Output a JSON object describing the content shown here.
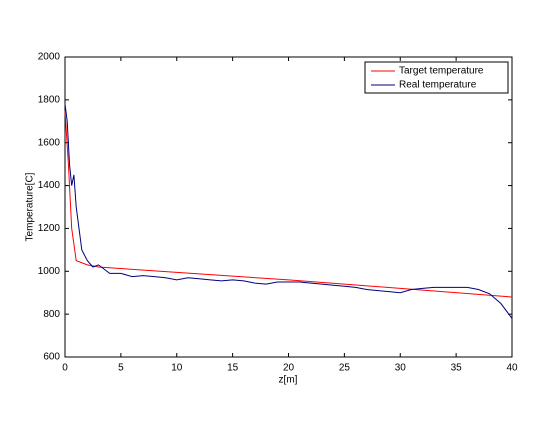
{
  "chart_data": {
    "type": "line",
    "xlabel": "z[m]",
    "ylabel": "Temperature[C]",
    "xlim": [
      0,
      40
    ],
    "xticks": [
      0,
      5,
      10,
      15,
      20,
      25,
      30,
      35,
      40
    ],
    "ylim": [
      600,
      2000
    ],
    "yticks": [
      600,
      800,
      1000,
      1200,
      1400,
      1600,
      1800,
      2000
    ],
    "legend": "top-right",
    "series": [
      {
        "name": "Target temperature",
        "color": "#ff0000",
        "x": [
          0,
          0.3,
          0.6,
          1,
          2,
          3,
          10,
          20,
          30,
          40
        ],
        "values": [
          1750,
          1500,
          1200,
          1050,
          1030,
          1020,
          995,
          960,
          920,
          880
        ]
      },
      {
        "name": "Real temperature",
        "color": "#000080",
        "x": [
          0,
          0.2,
          0.4,
          0.6,
          0.8,
          1,
          1.5,
          2,
          2.5,
          3,
          4,
          5,
          6,
          7,
          8,
          9,
          10,
          11,
          12,
          13,
          14,
          15,
          16,
          17,
          18,
          19,
          20,
          21,
          22,
          23,
          24,
          25,
          26,
          27,
          28,
          29,
          30,
          31,
          32,
          33,
          34,
          35,
          36,
          37,
          38,
          39,
          40
        ],
        "values": [
          1780,
          1700,
          1500,
          1400,
          1450,
          1300,
          1100,
          1050,
          1020,
          1030,
          990,
          990,
          975,
          980,
          975,
          970,
          960,
          970,
          965,
          960,
          955,
          960,
          955,
          945,
          940,
          950,
          950,
          950,
          945,
          940,
          935,
          930,
          925,
          915,
          910,
          905,
          900,
          915,
          920,
          925,
          925,
          925,
          925,
          915,
          895,
          850,
          780
        ]
      }
    ]
  }
}
